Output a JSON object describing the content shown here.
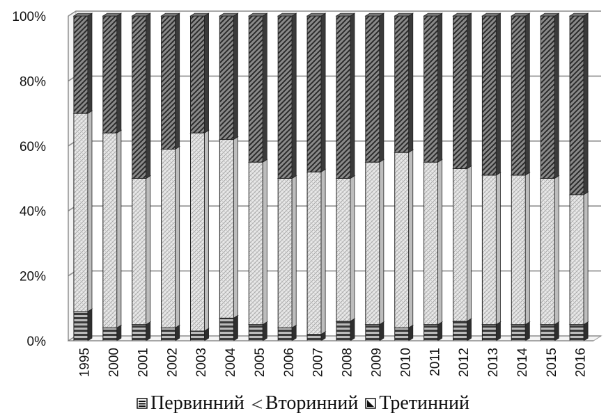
{
  "chart_data": {
    "type": "bar",
    "stacked": true,
    "percent": true,
    "categories": [
      "1995",
      "2000",
      "2001",
      "2002",
      "2003",
      "2004",
      "2005",
      "2006",
      "2007",
      "2008",
      "2009",
      "2010",
      "2011",
      "2012",
      "2013",
      "2014",
      "2015",
      "2016"
    ],
    "series": [
      {
        "name": "Первинний",
        "values": [
          9,
          4,
          5,
          4,
          3,
          7,
          5,
          4,
          2,
          6,
          5,
          4,
          5,
          6,
          5,
          5,
          5,
          5
        ]
      },
      {
        "name": "Вторинний",
        "values": [
          61,
          60,
          45,
          55,
          61,
          55,
          50,
          46,
          50,
          44,
          50,
          54,
          50,
          47,
          46,
          46,
          45,
          40
        ]
      },
      {
        "name": "Третинний",
        "values": [
          30,
          36,
          50,
          41,
          36,
          38,
          45,
          50,
          48,
          50,
          45,
          42,
          45,
          47,
          49,
          49,
          50,
          55
        ]
      }
    ],
    "yticks": [
      "0%",
      "20%",
      "40%",
      "60%",
      "80%",
      "100%"
    ],
    "ylim": [
      0,
      100
    ],
    "grid": true,
    "legend_position": "bottom",
    "colors": {
      "primary": "#555555",
      "secondary": "#d6d6d6",
      "tertiary": "#6f6f6f",
      "grid": "#8c8c8c"
    }
  },
  "legend": {
    "items": [
      {
        "label": "Первинний",
        "icon": "horizontal-stripe-icon"
      },
      {
        "label": "Вторинний",
        "icon": "angle-icon"
      },
      {
        "label": "Третинний",
        "icon": "diagonal-stripe-icon"
      }
    ]
  }
}
